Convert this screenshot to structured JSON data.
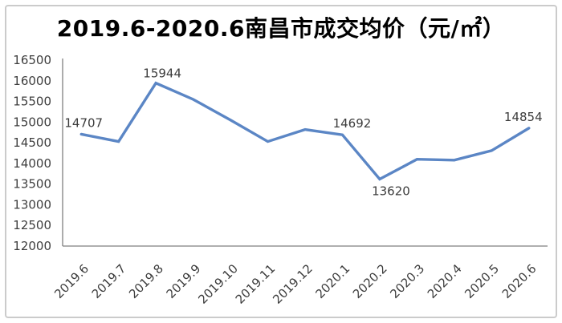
{
  "chart_data": {
    "type": "line",
    "title": "2019.6-2020.6南昌市成交均价（元/㎡）",
    "categories": [
      "2019.6",
      "2019.7",
      "2019.8",
      "2019.9",
      "2019.10",
      "2019.11",
      "2019.12",
      "2020.1",
      "2020.2",
      "2020.3",
      "2020.4",
      "2020.5",
      "2020.6"
    ],
    "values": [
      14707,
      14530,
      15944,
      15550,
      15050,
      14530,
      14820,
      14692,
      13620,
      14100,
      14080,
      14310,
      14854
    ],
    "data_labels": [
      {
        "index": 0,
        "text": "14707"
      },
      {
        "index": 2,
        "text": "15944"
      },
      {
        "index": 7,
        "text": "14692"
      },
      {
        "index": 8,
        "text": "13620"
      },
      {
        "index": 12,
        "text": "14854"
      }
    ],
    "xlabel": "",
    "ylabel": "",
    "ylim": [
      12000,
      16500
    ],
    "ytick_step": 500,
    "ytick_labels": [
      "12000",
      "12500",
      "13000",
      "13500",
      "14000",
      "14500",
      "15000",
      "15500",
      "16000",
      "16500"
    ],
    "grid": false,
    "legend": false,
    "colors": {
      "line": "#5B86C5",
      "axis": "#7f7f7f",
      "tick_label": "#3d3d3d",
      "data_label": "#3c3c3c",
      "title": "#000000",
      "frame_border": "#cbcbcb",
      "background": "#ffffff"
    }
  }
}
